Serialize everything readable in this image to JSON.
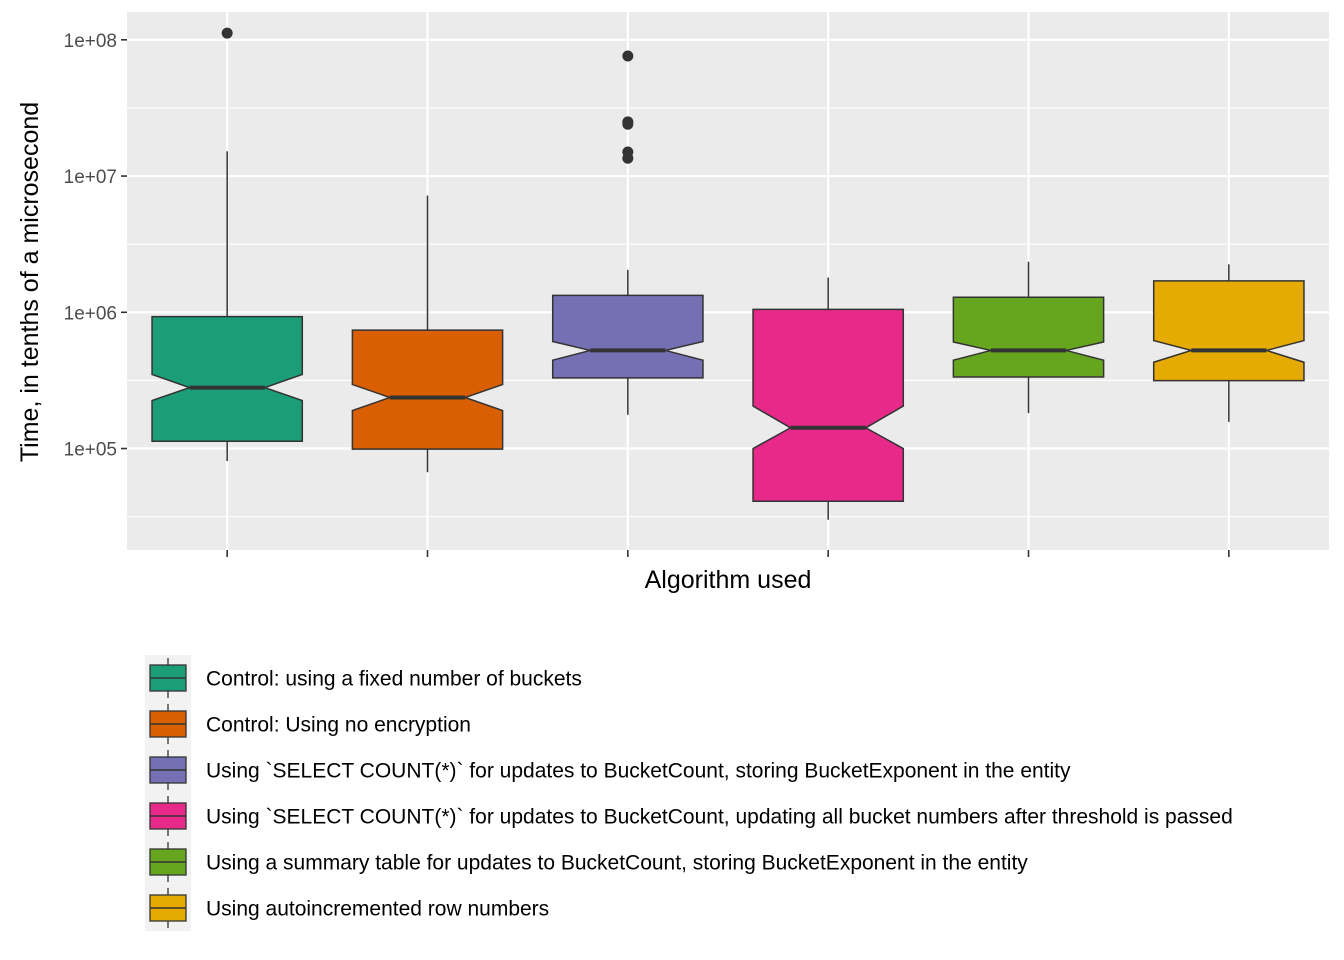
{
  "chart_data": {
    "type": "box",
    "xlabel": "Algorithm used",
    "ylabel": "Time, in tenths of a microsecond",
    "y_scale": "log10",
    "ylim": [
      18000,
      160000000
    ],
    "y_ticks": [
      {
        "value": 100000,
        "label": "1e+05"
      },
      {
        "value": 1000000,
        "label": "1e+06"
      },
      {
        "value": 10000000,
        "label": "1e+07"
      },
      {
        "value": 100000000,
        "label": "1e+08"
      }
    ],
    "notched": true,
    "grid": true,
    "legend_position": "bottom",
    "series": [
      {
        "name": "Control: using a fixed number of buckets",
        "color": "#1B9E77",
        "whisker_low": 81000,
        "q1": 113000,
        "median": 280000,
        "q3": 930000,
        "whisker_high": 15200000,
        "notch_low": 225000,
        "notch_high": 350000,
        "outliers": [
          112000000
        ]
      },
      {
        "name": "Control: Using no encryption",
        "color": "#D95F02",
        "whisker_low": 67000,
        "q1": 99000,
        "median": 237000,
        "q3": 740000,
        "whisker_high": 7200000,
        "notch_low": 190000,
        "notch_high": 295000,
        "outliers": []
      },
      {
        "name": "Using `SELECT COUNT(*)` for updates to BucketCount, storing BucketExponent in the entity",
        "color": "#7570B3",
        "whisker_low": 177000,
        "q1": 330000,
        "median": 525000,
        "q3": 1330000,
        "whisker_high": 2050000,
        "notch_low": 445000,
        "notch_high": 610000,
        "outliers": [
          76000000,
          25000000,
          24000000,
          15000000,
          13500000
        ]
      },
      {
        "name": "Using `SELECT COUNT(*)` for updates to BucketCount, updating all bucket numbers after threshold is passed",
        "color": "#E7298A",
        "whisker_low": 30000,
        "q1": 41000,
        "median": 142000,
        "q3": 1050000,
        "whisker_high": 1800000,
        "notch_low": 100000,
        "notch_high": 205000,
        "outliers": []
      },
      {
        "name": "Using a summary table for updates to BucketCount, storing BucketExponent in the entity",
        "color": "#66A61E",
        "whisker_low": 182000,
        "q1": 335000,
        "median": 525000,
        "q3": 1290000,
        "whisker_high": 2350000,
        "notch_low": 445000,
        "notch_high": 605000,
        "outliers": []
      },
      {
        "name": "Using autoincremented row numbers",
        "color": "#E6AB02",
        "whisker_low": 157000,
        "q1": 315000,
        "median": 525000,
        "q3": 1700000,
        "whisker_high": 2250000,
        "notch_low": 430000,
        "notch_high": 620000,
        "outliers": []
      }
    ]
  }
}
